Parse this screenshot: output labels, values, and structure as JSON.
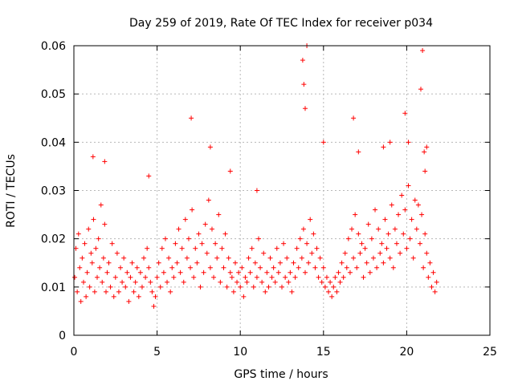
{
  "chart_data": {
    "type": "scatter",
    "title": "Day 259 of 2019, Rate Of TEC Index for receiver p034",
    "xlabel": "GPS time / hours",
    "ylabel": "ROTI / TECUs",
    "xlim": [
      0,
      25
    ],
    "ylim": [
      0,
      0.06
    ],
    "x_ticks": [
      "0",
      "5",
      "10",
      "15",
      "20",
      "25"
    ],
    "y_ticks": [
      "0",
      "0.01",
      "0.02",
      "0.03",
      "0.04",
      "0.05",
      "0.06"
    ],
    "grid": true,
    "marker": "+",
    "series_color": "#ff0000",
    "series": [
      {
        "x": [
          0.05,
          0.12,
          0.2,
          0.28,
          0.35,
          0.42,
          0.5,
          0.58,
          0.65,
          0.73,
          0.8,
          0.88,
          0.95,
          1.03,
          1.1,
          1.18,
          1.25,
          1.32,
          1.4,
          1.48,
          1.55,
          1.63,
          1.7,
          1.78,
          1.85,
          1.93,
          2.0,
          2.1,
          2.2,
          2.3,
          2.4,
          2.5,
          2.6,
          2.7,
          2.8,
          2.9,
          3.0,
          3.1,
          3.2,
          3.3,
          3.4,
          3.5,
          3.6,
          3.7,
          3.8,
          3.9,
          4.0,
          4.1,
          4.2,
          4.3,
          4.4,
          4.5,
          4.6,
          4.7,
          4.8,
          4.9,
          5.0,
          5.1,
          5.2,
          5.3,
          5.4,
          5.5,
          5.6,
          5.7,
          5.8,
          5.9,
          6.0,
          6.1,
          6.2,
          6.3,
          6.4,
          6.5,
          6.6,
          6.7,
          6.8,
          6.9,
          7.0,
          7.1,
          7.2,
          7.3,
          7.4,
          7.5,
          7.6,
          7.7,
          7.8,
          7.9,
          8.0,
          8.1,
          8.2,
          8.3,
          8.4,
          8.5,
          8.6,
          8.7,
          8.8,
          8.9,
          9.0,
          9.1,
          9.2,
          9.3,
          9.4,
          9.5,
          9.6,
          9.7,
          9.8,
          9.9,
          10.0,
          10.1,
          10.2,
          10.3,
          10.4,
          10.5,
          10.6,
          10.7,
          10.8,
          10.9,
          11.0,
          11.1,
          11.2,
          11.3,
          11.4,
          11.5,
          11.6,
          11.7,
          11.8,
          11.9,
          12.0,
          12.1,
          12.2,
          12.3,
          12.4,
          12.5,
          12.6,
          12.7,
          12.8,
          12.9,
          13.0,
          13.1,
          13.2,
          13.3,
          13.4,
          13.5,
          13.6,
          13.7,
          13.8,
          13.9,
          14.0,
          14.1,
          14.2,
          14.3,
          14.4,
          14.5,
          14.6,
          14.7,
          14.8,
          14.9,
          15.0,
          15.1,
          15.2,
          15.3,
          15.4,
          15.5,
          15.6,
          15.7,
          15.8,
          15.9,
          16.0,
          16.1,
          16.2,
          16.3,
          16.4,
          16.5,
          16.6,
          16.7,
          16.8,
          16.9,
          17.0,
          17.1,
          17.2,
          17.3,
          17.4,
          17.5,
          17.6,
          17.7,
          17.8,
          17.9,
          18.0,
          18.1,
          18.2,
          18.3,
          18.4,
          18.5,
          18.6,
          18.7,
          18.8,
          18.9,
          19.0,
          19.1,
          19.2,
          19.3,
          19.4,
          19.5,
          19.6,
          19.7,
          19.8,
          19.9,
          20.0,
          20.1,
          20.2,
          20.3,
          20.4,
          20.5,
          20.6,
          20.7,
          20.8,
          20.9,
          21.0,
          21.1,
          21.2,
          21.3,
          21.4,
          21.5,
          21.6,
          21.7,
          21.8,
          1.15,
          1.85,
          7.05,
          8.2,
          13.75,
          13.82,
          13.9,
          14.0,
          15.0,
          16.8,
          19.9,
          20.1,
          20.85,
          20.95,
          21.05,
          21.1,
          4.5,
          11.0,
          9.4,
          17.1,
          18.6,
          19.0,
          21.2
        ],
        "y": [
          0.012,
          0.018,
          0.009,
          0.021,
          0.014,
          0.007,
          0.016,
          0.011,
          0.019,
          0.008,
          0.013,
          0.022,
          0.01,
          0.017,
          0.015,
          0.024,
          0.009,
          0.018,
          0.012,
          0.02,
          0.014,
          0.027,
          0.011,
          0.016,
          0.023,
          0.009,
          0.013,
          0.015,
          0.01,
          0.019,
          0.008,
          0.012,
          0.017,
          0.009,
          0.014,
          0.011,
          0.016,
          0.01,
          0.013,
          0.007,
          0.012,
          0.015,
          0.009,
          0.011,
          0.014,
          0.008,
          0.013,
          0.01,
          0.016,
          0.012,
          0.018,
          0.014,
          0.011,
          0.009,
          0.006,
          0.008,
          0.012,
          0.015,
          0.01,
          0.018,
          0.013,
          0.02,
          0.011,
          0.016,
          0.009,
          0.014,
          0.012,
          0.019,
          0.015,
          0.022,
          0.013,
          0.018,
          0.011,
          0.024,
          0.016,
          0.02,
          0.014,
          0.026,
          0.012,
          0.018,
          0.015,
          0.021,
          0.01,
          0.019,
          0.013,
          0.023,
          0.017,
          0.028,
          0.014,
          0.022,
          0.012,
          0.019,
          0.016,
          0.025,
          0.011,
          0.018,
          0.014,
          0.021,
          0.01,
          0.016,
          0.013,
          0.012,
          0.009,
          0.015,
          0.011,
          0.013,
          0.01,
          0.014,
          0.008,
          0.012,
          0.011,
          0.016,
          0.013,
          0.018,
          0.01,
          0.015,
          0.012,
          0.02,
          0.014,
          0.011,
          0.017,
          0.009,
          0.013,
          0.01,
          0.016,
          0.012,
          0.014,
          0.011,
          0.018,
          0.013,
          0.015,
          0.01,
          0.019,
          0.012,
          0.016,
          0.011,
          0.013,
          0.009,
          0.015,
          0.012,
          0.018,
          0.014,
          0.02,
          0.016,
          0.022,
          0.013,
          0.019,
          0.015,
          0.024,
          0.017,
          0.021,
          0.014,
          0.018,
          0.012,
          0.016,
          0.011,
          0.014,
          0.01,
          0.012,
          0.009,
          0.011,
          0.008,
          0.01,
          0.012,
          0.009,
          0.013,
          0.011,
          0.015,
          0.012,
          0.017,
          0.014,
          0.02,
          0.013,
          0.022,
          0.016,
          0.025,
          0.014,
          0.021,
          0.017,
          0.019,
          0.012,
          0.018,
          0.015,
          0.023,
          0.013,
          0.02,
          0.016,
          0.026,
          0.014,
          0.022,
          0.017,
          0.019,
          0.015,
          0.024,
          0.018,
          0.021,
          0.016,
          0.027,
          0.014,
          0.022,
          0.019,
          0.025,
          0.017,
          0.029,
          0.021,
          0.026,
          0.018,
          0.031,
          0.02,
          0.024,
          0.016,
          0.028,
          0.022,
          0.027,
          0.019,
          0.025,
          0.014,
          0.021,
          0.017,
          0.012,
          0.015,
          0.01,
          0.013,
          0.009,
          0.011,
          0.037,
          0.036,
          0.045,
          0.039,
          0.057,
          0.052,
          0.047,
          0.06,
          0.04,
          0.045,
          0.046,
          0.04,
          0.051,
          0.059,
          0.038,
          0.034,
          0.033,
          0.03,
          0.034,
          0.038,
          0.039,
          0.04,
          0.039
        ]
      }
    ]
  }
}
